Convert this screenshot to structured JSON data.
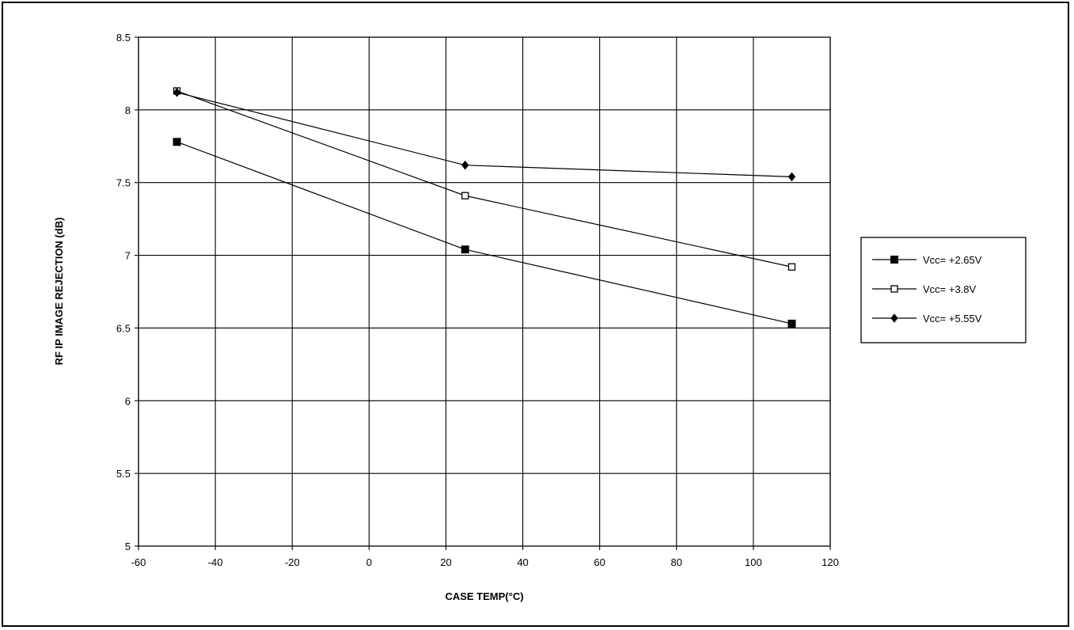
{
  "chart_data": {
    "type": "line",
    "title": "",
    "xlabel": "CASE TEMP(°C)",
    "ylabel": "RF IP IMAGE REJECTION (dB)",
    "xlim": [
      -60,
      120
    ],
    "ylim": [
      5,
      8.5
    ],
    "xticks": [
      -60,
      -40,
      -20,
      0,
      20,
      40,
      60,
      80,
      100,
      120
    ],
    "yticks": [
      5,
      5.5,
      6,
      6.5,
      7,
      7.5,
      8,
      8.5
    ],
    "grid": true,
    "legend_position": "right",
    "series": [
      {
        "name": "Vcc= +2.65V",
        "marker": "filled-square",
        "color": "#000000",
        "x": [
          -50,
          25,
          110
        ],
        "y": [
          7.78,
          7.04,
          6.53
        ]
      },
      {
        "name": "Vcc= +3.8V",
        "marker": "open-square",
        "color": "#000000",
        "x": [
          -50,
          25,
          110
        ],
        "y": [
          8.13,
          7.41,
          6.92
        ]
      },
      {
        "name": "Vcc= +5.55V",
        "marker": "filled-diamond",
        "color": "#000000",
        "x": [
          -50,
          25,
          110
        ],
        "y": [
          8.12,
          7.62,
          7.54
        ]
      }
    ]
  }
}
